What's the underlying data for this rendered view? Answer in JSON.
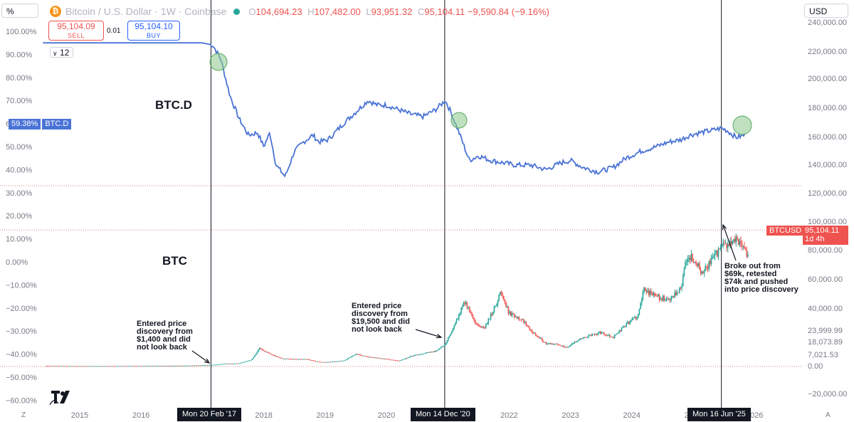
{
  "header": {
    "symbol": "Bitcoin / U.S. Dollar · 1W · Coinbase",
    "coin_glyph": "₿",
    "open_key": "O",
    "open": "104,694.23",
    "high_key": "H",
    "high": "107,482.00",
    "low_key": "L",
    "low": "93,951.32",
    "close_key": "C",
    "close": "95,104.11",
    "change": "−9,590.84 (−9.16%)"
  },
  "left_scale_button": "%",
  "currency_button": "USD",
  "trade": {
    "sell_price": "95,104.09",
    "sell_label": "SELL",
    "spread": "0.01",
    "buy_price": "95,104.10",
    "buy_label": "BUY"
  },
  "interval_value": "12",
  "labels": {
    "btcd": "BTC.D",
    "btc": "BTC",
    "annot_1": "Entered price|discovery from|$1,400 and did|not look back",
    "annot_2": "Entered price|discovery from|$19,500 and did|not look back",
    "annot_3": "Broke out from|$69k, retested|$74k and pushed|into price discovery"
  },
  "btcd_tag": {
    "value": "59.38%",
    "name": "BTC.D"
  },
  "btcusd_tag": {
    "name": "BTCUSD",
    "price": "95,104.11",
    "countdown": "1d 4h"
  },
  "date_markers": [
    "Mon 20 Feb '17",
    "Mon 14 Dec '20",
    "Mon 16 Jun '25"
  ],
  "corner_z": "Z",
  "corner_a": "A",
  "colors": {
    "btcd_line": "#4a73d6",
    "up": "#26a69a",
    "down": "#ef5350",
    "highlight_circle": "#8bc98d"
  },
  "chart_data": [
    {
      "type": "line",
      "name": "BTC.D",
      "title": "BTC.D",
      "ylabel": "%",
      "left_axis_ticks": [
        "100.00%",
        "90.00%",
        "80.00%",
        "70.00%",
        "60.00%",
        "50.00%",
        "40.00%",
        "30.00%",
        "20.00%",
        "10.00%",
        "0.00%",
        "−10.00%",
        "−20.00%",
        "−30.00%",
        "−40.00%",
        "−50.00%",
        "−60.00%"
      ],
      "x": [
        2014.4,
        2015.0,
        2016.0,
        2017.0,
        2017.17,
        2017.3,
        2017.45,
        2017.6,
        2017.75,
        2017.9,
        2018.0,
        2018.1,
        2018.2,
        2018.35,
        2018.5,
        2018.65,
        2018.8,
        2018.9,
        2019.05,
        2019.3,
        2019.5,
        2019.7,
        2019.85,
        2020.0,
        2020.2,
        2020.4,
        2020.6,
        2020.8,
        2020.96,
        2021.05,
        2021.2,
        2021.35,
        2021.5,
        2021.7,
        2021.9,
        2022.1,
        2022.35,
        2022.6,
        2022.85,
        2023.0,
        2023.2,
        2023.45,
        2023.7,
        2023.9,
        2024.15,
        2024.4,
        2024.6,
        2024.8,
        2024.95,
        2025.1,
        2025.3,
        2025.46,
        2025.55,
        2025.7,
        2025.85
      ],
      "values": [
        95,
        95,
        95,
        95,
        94,
        88,
        72,
        62,
        55,
        56,
        50,
        56,
        42,
        37,
        48,
        52,
        55,
        52,
        53,
        60,
        65,
        70,
        68,
        68,
        66,
        64,
        63,
        66,
        70,
        65,
        55,
        44,
        46,
        44,
        43,
        42,
        42,
        40,
        43,
        44,
        41,
        39,
        41,
        45,
        48,
        50,
        52,
        53,
        55,
        56,
        57,
        58,
        57,
        54,
        55
      ]
    },
    {
      "type": "candlestick",
      "name": "BTCUSD",
      "title": "BTC",
      "ylabel": "USD",
      "right_axis_ticks": [
        "240,000.00",
        "220,000.00",
        "200,000.00",
        "180,000.00",
        "160,000.00",
        "140,000.00",
        "120,000.00",
        "100,000.00",
        "80,000.00",
        "60,000.00",
        "40,000.00",
        "23,999.99",
        "18,073.89",
        "7,021.53",
        "0.00",
        "−20,000.00"
      ],
      "x_ticks": [
        "2015",
        "2016",
        "2017",
        "2018",
        "2019",
        "2020",
        "2021",
        "2022",
        "2023",
        "2024",
        "2025",
        "2026"
      ],
      "x": [
        2014.4,
        2015.0,
        2016.0,
        2016.8,
        2017.0,
        2017.17,
        2017.4,
        2017.6,
        2017.8,
        2017.93,
        2018.1,
        2018.3,
        2018.5,
        2018.7,
        2018.9,
        2019.0,
        2019.3,
        2019.5,
        2019.7,
        2019.9,
        2020.2,
        2020.4,
        2020.6,
        2020.8,
        2020.96,
        2021.1,
        2021.28,
        2021.45,
        2021.6,
        2021.75,
        2021.86,
        2022.0,
        2022.2,
        2022.4,
        2022.6,
        2022.8,
        2022.95,
        2023.1,
        2023.3,
        2023.5,
        2023.7,
        2023.9,
        2024.1,
        2024.2,
        2024.4,
        2024.6,
        2024.8,
        2024.9,
        2025.0,
        2025.15,
        2025.3,
        2025.46,
        2025.6,
        2025.75,
        2025.85,
        2025.9
      ],
      "values": [
        500,
        300,
        400,
        800,
        1000,
        1400,
        2500,
        2700,
        6000,
        16000,
        11000,
        7000,
        6500,
        6400,
        4000,
        3700,
        5000,
        11000,
        8500,
        7200,
        5000,
        9000,
        11500,
        13500,
        19500,
        35000,
        58000,
        37000,
        34000,
        50000,
        66000,
        47000,
        42000,
        30000,
        20000,
        19500,
        16500,
        23000,
        27000,
        30000,
        26000,
        37000,
        45000,
        68000,
        62000,
        58000,
        68000,
        98000,
        95000,
        82000,
        94000,
        105000,
        108000,
        112000,
        104000,
        95104
      ]
    }
  ]
}
